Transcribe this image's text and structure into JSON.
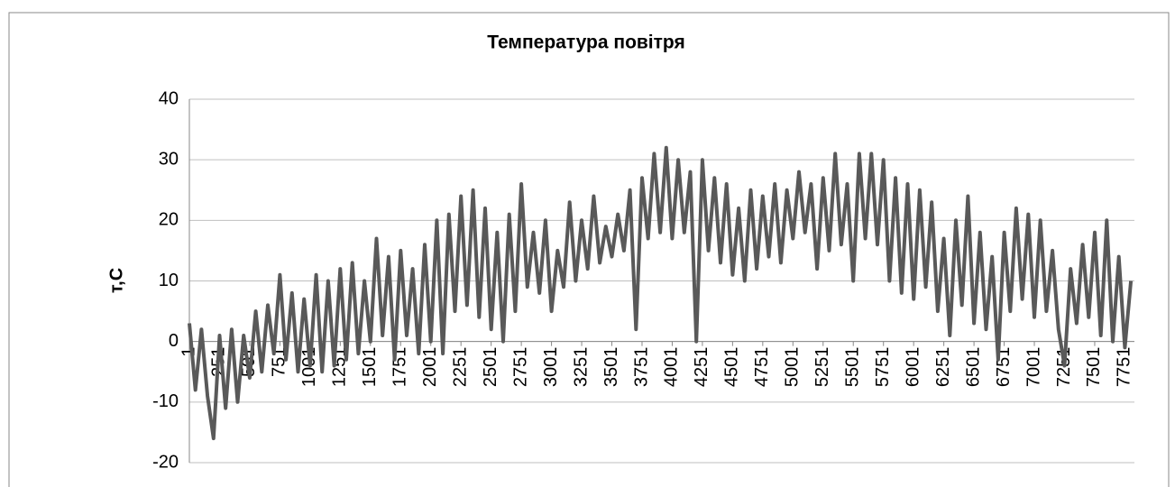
{
  "chart_data": {
    "type": "line",
    "title": "Температура повітря",
    "y_label": "т,С",
    "x": [
      1,
      51,
      101,
      151,
      201,
      251,
      301,
      351,
      401,
      451,
      501,
      551,
      601,
      651,
      701,
      751,
      801,
      851,
      901,
      951,
      1001,
      1051,
      1101,
      1151,
      1201,
      1251,
      1301,
      1351,
      1401,
      1451,
      1501,
      1551,
      1601,
      1651,
      1701,
      1751,
      1801,
      1851,
      1901,
      1951,
      2001,
      2051,
      2101,
      2151,
      2201,
      2251,
      2301,
      2351,
      2401,
      2451,
      2501,
      2551,
      2601,
      2651,
      2701,
      2751,
      2801,
      2851,
      2901,
      2951,
      3001,
      3051,
      3101,
      3151,
      3201,
      3251,
      3301,
      3351,
      3401,
      3451,
      3501,
      3551,
      3601,
      3651,
      3701,
      3751,
      3801,
      3851,
      3901,
      3951,
      4001,
      4051,
      4101,
      4151,
      4201,
      4251,
      4301,
      4351,
      4401,
      4451,
      4501,
      4551,
      4601,
      4651,
      4701,
      4751,
      4801,
      4851,
      4901,
      4951,
      5001,
      5051,
      5101,
      5151,
      5201,
      5251,
      5301,
      5351,
      5401,
      5451,
      5501,
      5551,
      5601,
      5651,
      5701,
      5751,
      5801,
      5851,
      5901,
      5951,
      6001,
      6051,
      6101,
      6151,
      6201,
      6251,
      6301,
      6351,
      6401,
      6451,
      6501,
      6551,
      6601,
      6651,
      6701,
      6751,
      6801,
      6851,
      6901,
      6951,
      7001,
      7051,
      7101,
      7151,
      7201,
      7251,
      7301,
      7351,
      7401,
      7451,
      7501,
      7551,
      7601,
      7651,
      7701,
      7751,
      7801
    ],
    "series": [
      {
        "name": "т,С",
        "color": "#595959",
        "values": [
          3,
          -8,
          2,
          -9,
          -16,
          1,
          -11,
          2,
          -10,
          1,
          -6,
          5,
          -5,
          6,
          -2,
          11,
          -3,
          8,
          -5,
          7,
          -4,
          11,
          -5,
          10,
          -4,
          12,
          -3,
          13,
          -2,
          10,
          0,
          17,
          1,
          14,
          -3,
          15,
          1,
          12,
          -2,
          16,
          0,
          20,
          -2,
          21,
          5,
          24,
          6,
          25,
          4,
          22,
          2,
          18,
          0,
          21,
          5,
          26,
          9,
          18,
          8,
          20,
          5,
          15,
          9,
          23,
          10,
          20,
          12,
          24,
          13,
          19,
          14,
          21,
          15,
          25,
          2,
          27,
          17,
          31,
          18,
          32,
          17,
          30,
          18,
          28,
          0,
          30,
          15,
          27,
          13,
          26,
          11,
          22,
          10,
          25,
          12,
          24,
          14,
          26,
          13,
          25,
          17,
          28,
          18,
          26,
          12,
          27,
          15,
          31,
          16,
          26,
          10,
          31,
          17,
          31,
          16,
          30,
          10,
          27,
          8,
          26,
          7,
          25,
          9,
          23,
          5,
          17,
          1,
          20,
          6,
          24,
          3,
          18,
          2,
          14,
          -3,
          18,
          5,
          22,
          7,
          21,
          4,
          20,
          5,
          15,
          2,
          -4,
          12,
          3,
          16,
          4,
          18,
          1,
          20,
          0,
          14,
          -1,
          10
        ]
      }
    ],
    "xlim": [
      1,
      7830
    ],
    "xticks": [
      1,
      251,
      501,
      751,
      1001,
      1251,
      1501,
      1751,
      2001,
      2251,
      2501,
      2751,
      3001,
      3251,
      3501,
      3751,
      4001,
      4251,
      4501,
      4751,
      5001,
      5251,
      5501,
      5751,
      6001,
      6251,
      6501,
      6751,
      7001,
      7251,
      7501,
      7751
    ],
    "ylim": [
      -20,
      40
    ],
    "yticks": [
      -20,
      -10,
      0,
      10,
      20,
      30,
      40
    ],
    "grid": true
  }
}
